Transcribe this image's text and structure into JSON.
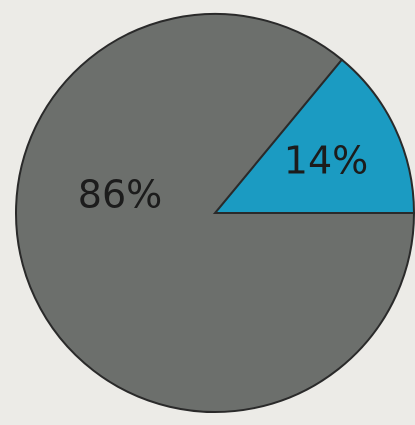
{
  "chart_data": {
    "type": "pie",
    "values": [
      14,
      86
    ],
    "value_labels": [
      "14%",
      "86%"
    ],
    "colors": [
      "#1b9bc2",
      "#6c6f6c"
    ]
  }
}
